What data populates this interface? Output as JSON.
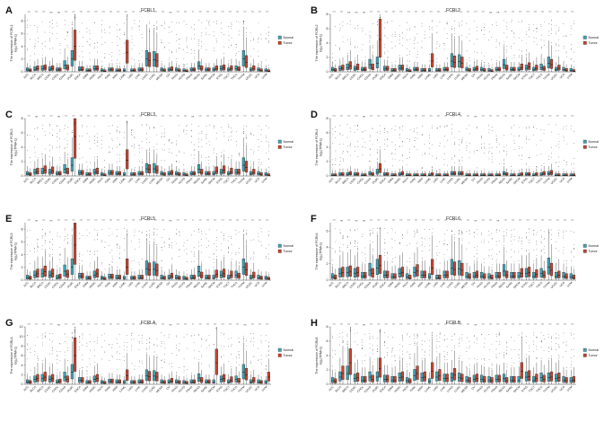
{
  "colors": {
    "normal": "#3fa3b5",
    "tumor": "#c8432e",
    "axis": "#444444"
  },
  "legend": [
    "Normal",
    "Tumor"
  ],
  "cancers": [
    "ACC",
    "BLCA",
    "BRCA",
    "CESC",
    "CHOL",
    "COAD",
    "DLBC",
    "ESCA",
    "GBM",
    "HNSC",
    "KICH",
    "KIRC",
    "KIRP",
    "LAML",
    "LGG",
    "LIHC",
    "LUAD",
    "LUSC",
    "MESO",
    "OV",
    "PAAD",
    "PCPG",
    "PRAD",
    "READ",
    "SARC",
    "SKCM",
    "STAD",
    "TGCT",
    "THCA",
    "THYM",
    "UCEC",
    "UCS",
    "UVM"
  ],
  "chart_data": [
    {
      "type": "box",
      "letter": "A",
      "title": "FCRL1",
      "ylabel_1": "The expression of FCRL1",
      "ylabel_2": "log₂(TPM+1)",
      "yticks": [
        0,
        2,
        4,
        6,
        8
      ],
      "ylim": [
        0,
        9
      ],
      "sig": [
        "***",
        "***",
        "***",
        "ns",
        "ns",
        "***",
        "***",
        "***",
        "***",
        "***",
        "***",
        "***",
        "***",
        "***",
        "***",
        "***",
        "***",
        "***",
        "***",
        "ns",
        "***",
        "***",
        "**",
        "***",
        "***",
        "***",
        "***",
        "***",
        "***",
        "***",
        "***",
        "***",
        "***"
      ],
      "normal_median": [
        0.3,
        0.4,
        0.5,
        0.4,
        0.3,
        1.0,
        2.0,
        0.4,
        0.2,
        0.5,
        0.2,
        0.3,
        0.2,
        0.2,
        0.2,
        0.3,
        2.0,
        1.9,
        0.3,
        0.3,
        0.3,
        0.2,
        0.3,
        0.9,
        0.3,
        0.3,
        0.5,
        0.3,
        0.5,
        2.0,
        0.3,
        0.3,
        0.2
      ],
      "tumor_median": [
        0.2,
        0.5,
        0.6,
        0.5,
        0.3,
        0.6,
        4.0,
        0.4,
        0.2,
        0.5,
        0.1,
        0.3,
        0.2,
        3.0,
        0.2,
        0.3,
        1.8,
        1.7,
        0.2,
        0.4,
        0.2,
        0.1,
        0.3,
        0.5,
        0.3,
        0.5,
        0.6,
        0.5,
        0.4,
        1.5,
        0.5,
        0.2,
        0.1
      ]
    },
    {
      "type": "box",
      "letter": "B",
      "title": "FCRL2",
      "ylabel_1": "The expression of FCRL2",
      "ylabel_2": "log₂(TPM+1)",
      "yticks": [
        0,
        2,
        4,
        6,
        8
      ],
      "ylim": [
        0,
        8
      ],
      "sig": [
        "***",
        "***",
        "ns",
        "ns",
        "ns",
        "***",
        "***",
        "***",
        "***",
        "***",
        "***",
        "***",
        "***",
        "***",
        "***",
        "***",
        "***",
        "***",
        "***",
        "***",
        "***",
        "ns",
        "ns",
        "***",
        "***",
        "***",
        "***",
        "***",
        "***",
        "***",
        "***",
        "***",
        "***"
      ],
      "normal_median": [
        0.3,
        0.4,
        0.6,
        0.4,
        0.3,
        1.0,
        1.2,
        0.4,
        0.2,
        0.5,
        0.2,
        0.3,
        0.2,
        0.2,
        0.2,
        0.3,
        1.5,
        1.4,
        0.3,
        0.3,
        0.3,
        0.2,
        0.3,
        1.0,
        0.3,
        0.3,
        0.5,
        0.3,
        0.6,
        1.2,
        0.3,
        0.3,
        0.2
      ],
      "tumor_median": [
        0.2,
        0.5,
        0.8,
        0.6,
        0.3,
        0.6,
        4.5,
        0.4,
        0.2,
        0.5,
        0.1,
        0.3,
        0.2,
        1.5,
        0.2,
        0.3,
        1.3,
        1.2,
        0.2,
        0.4,
        0.2,
        0.1,
        0.3,
        0.5,
        0.3,
        0.6,
        0.7,
        0.5,
        0.4,
        1.0,
        0.5,
        0.2,
        0.1
      ]
    },
    {
      "type": "box",
      "letter": "C",
      "title": "FCRL3",
      "ylabel_1": "The expression of FCRL3",
      "ylabel_2": "log₂(TPM+1)",
      "yticks": [
        0,
        2,
        4,
        6,
        8
      ],
      "ylim": [
        0,
        8
      ],
      "sig": [
        "***",
        "ns",
        "***",
        "***",
        "ns",
        "***",
        "***",
        "***",
        "***",
        "***",
        "***",
        "***",
        "***",
        "***",
        "***",
        "***",
        "***",
        "***",
        "***",
        "***",
        "***",
        "***",
        "ns",
        "***",
        "***",
        "***",
        "***",
        "***",
        "***",
        "***",
        "***",
        "***",
        "***"
      ],
      "normal_median": [
        0.3,
        0.5,
        0.6,
        0.5,
        0.3,
        0.9,
        1.5,
        0.4,
        0.2,
        0.5,
        0.2,
        0.4,
        0.3,
        0.2,
        0.2,
        0.3,
        1.0,
        1.0,
        0.3,
        0.3,
        0.3,
        0.2,
        0.3,
        0.9,
        0.3,
        0.3,
        0.5,
        0.3,
        0.5,
        1.5,
        0.3,
        0.3,
        0.2
      ],
      "tumor_median": [
        0.2,
        0.6,
        0.8,
        0.7,
        0.3,
        0.6,
        5.5,
        0.4,
        0.2,
        0.6,
        0.1,
        0.4,
        0.3,
        2.2,
        0.2,
        0.3,
        0.9,
        0.8,
        0.2,
        0.4,
        0.2,
        0.1,
        0.3,
        0.5,
        0.3,
        0.7,
        0.8,
        0.6,
        0.5,
        1.2,
        0.5,
        0.2,
        0.1
      ]
    },
    {
      "type": "box",
      "letter": "D",
      "title": "FCRL4",
      "ylabel_1": "The expression of FCRL4",
      "ylabel_2": "log₂(TPM+1)",
      "yticks": [
        0,
        2,
        4,
        6,
        8
      ],
      "ylim": [
        0,
        8
      ],
      "sig": [
        "***",
        "***",
        "***",
        "***",
        "ns",
        "***",
        "***",
        "***",
        "***",
        "***",
        "***",
        "***",
        "***",
        "***",
        "***",
        "***",
        "***",
        "***",
        "***",
        "ns",
        "***",
        "***",
        "***",
        "***",
        "***",
        "***",
        "***",
        "***",
        "***",
        "***",
        "***",
        "***",
        "***"
      ],
      "normal_median": [
        0.1,
        0.2,
        0.2,
        0.2,
        0.1,
        0.3,
        0.5,
        0.2,
        0.1,
        0.2,
        0.1,
        0.1,
        0.1,
        0.1,
        0.1,
        0.1,
        0.3,
        0.3,
        0.1,
        0.1,
        0.1,
        0.1,
        0.1,
        0.3,
        0.1,
        0.1,
        0.2,
        0.1,
        0.2,
        0.3,
        0.1,
        0.1,
        0.1
      ],
      "tumor_median": [
        0.1,
        0.2,
        0.3,
        0.2,
        0.1,
        0.2,
        1.0,
        0.2,
        0.1,
        0.3,
        0.1,
        0.1,
        0.1,
        0.2,
        0.1,
        0.1,
        0.3,
        0.3,
        0.1,
        0.1,
        0.1,
        0.1,
        0.1,
        0.2,
        0.1,
        0.2,
        0.2,
        0.2,
        0.3,
        0.4,
        0.1,
        0.1,
        0.1
      ]
    },
    {
      "type": "box",
      "letter": "E",
      "title": "FCRL5",
      "ylabel_1": "The expression of FCRL5",
      "ylabel_2": "log₂(TPM+1)",
      "yticks": [
        0,
        2,
        4,
        6,
        8
      ],
      "ylim": [
        0,
        9
      ],
      "sig": [
        "***",
        "ns",
        "***",
        "ns",
        "***",
        "***",
        "***",
        "***",
        "***",
        "***",
        "***",
        "***",
        "***",
        "***",
        "***",
        "***",
        "***",
        "***",
        "***",
        "ns",
        "***",
        "***",
        "**",
        "***",
        "***",
        "***",
        "***",
        "***",
        "***",
        "***",
        "***",
        "***",
        "***"
      ],
      "normal_median": [
        0.4,
        0.8,
        1.0,
        0.8,
        0.4,
        1.4,
        2.0,
        0.6,
        0.3,
        0.8,
        0.3,
        0.5,
        0.4,
        0.3,
        0.3,
        0.4,
        1.8,
        1.7,
        0.4,
        0.4,
        0.4,
        0.3,
        0.4,
        1.3,
        0.4,
        0.4,
        0.8,
        0.4,
        0.8,
        2.0,
        0.4,
        0.4,
        0.3
      ],
      "tumor_median": [
        0.3,
        1.0,
        1.3,
        1.0,
        0.5,
        0.9,
        5.5,
        0.6,
        0.3,
        1.0,
        0.2,
        0.5,
        0.4,
        2.0,
        0.3,
        0.4,
        1.6,
        1.5,
        0.3,
        0.6,
        0.3,
        0.2,
        0.4,
        0.7,
        0.4,
        0.9,
        1.0,
        0.8,
        0.6,
        1.6,
        0.7,
        0.3,
        0.2
      ]
    },
    {
      "type": "box",
      "letter": "F",
      "title": "FCRL6",
      "ylabel_1": "The expression of FCRL6",
      "ylabel_2": "log₂(TPM+1)",
      "yticks": [
        0,
        2,
        4,
        6,
        8
      ],
      "ylim": [
        0,
        7
      ],
      "sig": [
        "***",
        "ns",
        "***",
        "ns",
        "ns",
        "***",
        "***",
        "***",
        "***",
        "***",
        "***",
        "***",
        "***",
        "***",
        "***",
        "***",
        "***",
        "***",
        "***",
        "ns",
        "***",
        "***",
        "ns",
        "***",
        "***",
        "***",
        "***",
        "***",
        "***",
        "***",
        "***",
        "***",
        "***"
      ],
      "normal_median": [
        0.4,
        0.8,
        0.9,
        0.8,
        0.5,
        1.2,
        1.5,
        0.6,
        0.4,
        0.8,
        0.4,
        0.9,
        0.6,
        0.4,
        0.3,
        0.6,
        1.5,
        1.4,
        0.5,
        0.5,
        0.5,
        0.4,
        0.5,
        1.1,
        0.5,
        0.5,
        0.8,
        0.5,
        0.8,
        1.6,
        0.5,
        0.5,
        0.4
      ],
      "tumor_median": [
        0.3,
        0.9,
        1.0,
        0.9,
        0.5,
        0.8,
        1.8,
        0.6,
        0.4,
        0.9,
        0.3,
        1.1,
        0.6,
        1.5,
        0.3,
        0.6,
        1.3,
        1.2,
        0.4,
        0.6,
        0.4,
        0.3,
        0.5,
        0.6,
        0.5,
        0.8,
        0.9,
        0.7,
        0.6,
        1.2,
        0.6,
        0.4,
        0.3
      ]
    },
    {
      "type": "box",
      "letter": "G",
      "title": "FCRLA",
      "ylabel_1": "The expression of FCRLA",
      "ylabel_2": "log₂(TPM+1)",
      "yticks": [
        0,
        2,
        4,
        6,
        8,
        10,
        12
      ],
      "ylim": [
        0,
        12
      ],
      "sig": [
        "***",
        "***",
        "***",
        "***",
        "ns",
        "***",
        "***",
        "***",
        "***",
        "***",
        "***",
        "***",
        "***",
        "***",
        "***",
        "***",
        "***",
        "***",
        "***",
        "ns",
        "***",
        "***",
        "**",
        "***",
        "***",
        "***",
        "***",
        "***",
        "***",
        "ns",
        "***",
        "***",
        "***"
      ],
      "normal_median": [
        0.5,
        1.0,
        1.2,
        1.0,
        0.5,
        1.5,
        2.5,
        0.8,
        0.4,
        1.0,
        0.4,
        0.6,
        0.5,
        0.4,
        0.4,
        0.5,
        1.8,
        1.7,
        0.5,
        0.5,
        0.5,
        0.4,
        0.5,
        1.3,
        0.5,
        0.5,
        1.0,
        0.5,
        1.0,
        2.5,
        0.5,
        0.5,
        0.4
      ],
      "tumor_median": [
        0.4,
        1.2,
        1.5,
        1.2,
        0.6,
        1.0,
        6.0,
        0.8,
        0.4,
        1.2,
        0.3,
        0.6,
        0.5,
        1.8,
        0.4,
        0.5,
        1.6,
        1.5,
        0.4,
        0.7,
        0.4,
        0.3,
        0.5,
        0.8,
        0.5,
        4.5,
        1.2,
        0.9,
        0.7,
        2.0,
        0.8,
        0.4,
        1.5
      ]
    },
    {
      "type": "box",
      "letter": "H",
      "title": "FCRLB",
      "ylabel_1": "The expression of FCRLB",
      "ylabel_2": "log₂(TPM+1)",
      "yticks": [
        0,
        2,
        4,
        6,
        8
      ],
      "ylim": [
        0,
        8
      ],
      "sig": [
        "***",
        "***",
        "***",
        "***",
        "ns",
        "***",
        "***",
        "***",
        "***",
        "***",
        "***",
        "***",
        "***",
        "***",
        "***",
        "***",
        "***",
        "***",
        "***",
        "ns",
        "***",
        "***",
        "***",
        "***",
        "***",
        "***",
        "***",
        "***",
        "***",
        "***",
        "***",
        "***",
        "***"
      ],
      "normal_median": [
        0.5,
        1.0,
        1.5,
        0.8,
        0.6,
        1.0,
        1.0,
        0.7,
        0.6,
        0.9,
        0.5,
        1.2,
        0.9,
        0.4,
        1.0,
        0.8,
        0.9,
        0.9,
        0.6,
        0.7,
        0.7,
        0.6,
        0.7,
        0.8,
        0.6,
        0.6,
        1.0,
        0.6,
        0.9,
        0.9,
        0.8,
        0.6,
        0.5
      ],
      "tumor_median": [
        0.4,
        1.5,
        3.0,
        0.9,
        0.6,
        0.7,
        2.2,
        0.7,
        0.6,
        1.0,
        0.4,
        1.5,
        1.0,
        1.8,
        1.2,
        0.8,
        1.3,
        0.8,
        0.5,
        0.8,
        0.6,
        0.5,
        0.7,
        0.5,
        0.6,
        1.8,
        1.1,
        0.8,
        0.7,
        1.0,
        0.9,
        0.5,
        0.6
      ]
    }
  ]
}
